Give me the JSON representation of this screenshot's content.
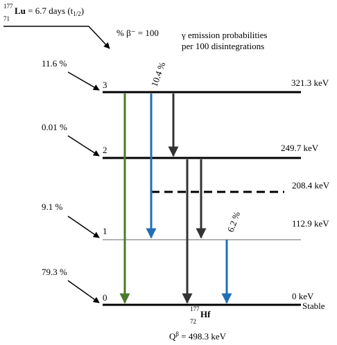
{
  "parent": {
    "mass": "177",
    "atomic": "71",
    "symbol": "Lu",
    "halflife": " = 6.7 days (t",
    "halflife_sub": "1/2",
    "halflife_end": ")"
  },
  "beta_branching": "% β⁻ = 100",
  "legend": {
    "line1": "γ emission probabilities",
    "line2": "per 100 disintegrations"
  },
  "levels": [
    {
      "index": "3",
      "energy": "321.3 keV",
      "feeding": "11.6 %"
    },
    {
      "index": "2",
      "energy": "249.7 keV",
      "feeding": "0.01 %"
    },
    {
      "energy": "208.4 keV"
    },
    {
      "index": "1",
      "energy": "112.9 keV",
      "feeding": "9.1 %"
    },
    {
      "index": "0",
      "energy": "0 keV",
      "feeding": "79.3 %",
      "status": "Stable"
    }
  ],
  "gamma_labels": [
    "10.4 %",
    "6.2 %"
  ],
  "daughter": {
    "mass": "177",
    "atomic": "72",
    "symbol": "Hf"
  },
  "q_value": {
    "symbol": "Q",
    "sup": "β",
    "text": " = 498.3 keV"
  }
}
